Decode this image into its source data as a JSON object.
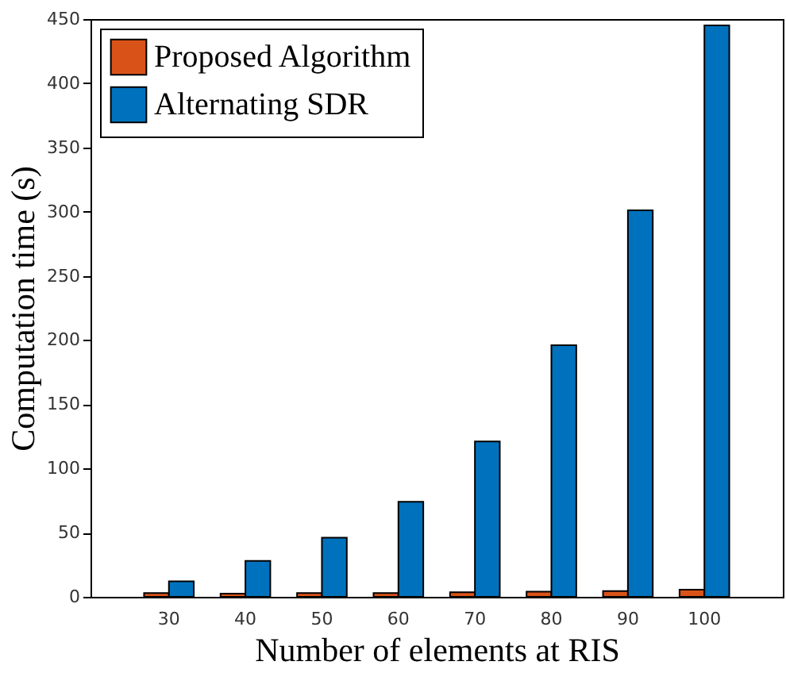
{
  "chart_data": {
    "type": "bar",
    "xlabel": "Number of elements at RIS",
    "ylabel": "Computation time (s)",
    "categories": [
      "30",
      "40",
      "50",
      "60",
      "70",
      "80",
      "90",
      "100"
    ],
    "series": [
      {
        "name": "Proposed Algorithm",
        "color": "#d95319",
        "values": [
          3,
          2.5,
          3,
          3,
          3.5,
          4,
          4.5,
          5.5
        ]
      },
      {
        "name": "Alternating SDR",
        "color": "#0072bd",
        "values": [
          12,
          28,
          46,
          74,
          121,
          196,
          301,
          445
        ]
      }
    ],
    "ylim": [
      0,
      450
    ],
    "yticks": [
      0,
      50,
      100,
      150,
      200,
      250,
      300,
      350,
      400,
      450
    ],
    "grid": false,
    "legend": "top left"
  }
}
